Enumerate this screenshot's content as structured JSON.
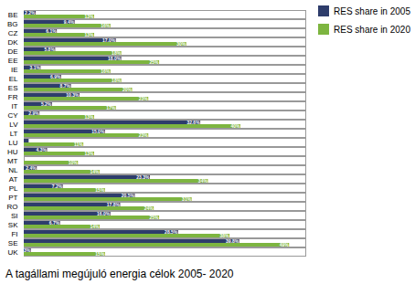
{
  "chart_data": {
    "type": "bar",
    "orientation": "horizontal",
    "title": "A tagállami megújuló energia célok 2005- 2020",
    "categories": [
      "BE",
      "BG",
      "CZ",
      "DK",
      "DE",
      "EE",
      "IE",
      "EL",
      "ES",
      "FR",
      "IT",
      "CY",
      "LV",
      "LT",
      "LU",
      "HU",
      "MT",
      "NL",
      "AT",
      "PL",
      "PT",
      "RO",
      "SI",
      "SK",
      "FI",
      "SE",
      "UK"
    ],
    "series": [
      {
        "name": "RES share in 2005",
        "color": "#2e3d6b",
        "values": [
          2.2,
          9.4,
          6.1,
          17.0,
          5.8,
          18.0,
          3.1,
          6.9,
          8.7,
          10.3,
          5.2,
          2.9,
          32.6,
          15.0,
          0.9,
          4.3,
          0.0,
          2.4,
          23.3,
          7.2,
          20.5,
          17.8,
          16.0,
          6.7,
          28.5,
          39.8,
          1.3
        ],
        "value_labels": [
          "2.2%",
          "9.4%",
          "6.1%",
          "17.0%",
          "5.8%",
          "18.0%",
          "3.1%",
          "6.9%",
          "8.7%",
          "10.3%",
          "5.2%",
          "2.9%",
          "32.6%",
          "15.0%",
          null,
          "4.3%",
          null,
          "2.4%",
          "23.3%",
          "7.2%",
          "20.5%",
          "17.8%",
          "16.0%",
          "6.7%",
          "28.5%",
          "39.8%",
          "1.3%"
        ]
      },
      {
        "name": "RES share in 2020",
        "color": "#7db540",
        "values": [
          13,
          16,
          13,
          30,
          18,
          25,
          16,
          18,
          20,
          23,
          17,
          13,
          40,
          23,
          11,
          13,
          10,
          14,
          34,
          15,
          31,
          24,
          25,
          14,
          38,
          49,
          15
        ],
        "value_labels": [
          "13%",
          "16%",
          "13%",
          "30%",
          "18%",
          "25%",
          "16%",
          "18%",
          "20%",
          "23%",
          "17%",
          "13%",
          "40%",
          "23%",
          "11%",
          "13%",
          "10%",
          "14%",
          "34%",
          "15%",
          "31%",
          "24%",
          "25%",
          "14%",
          "38%",
          "49%",
          "15%"
        ]
      }
    ],
    "xlim": [
      0,
      52
    ],
    "xticks": [],
    "grid": false,
    "legend": "upper right",
    "data_labels": true,
    "tick_labels": "y"
  }
}
